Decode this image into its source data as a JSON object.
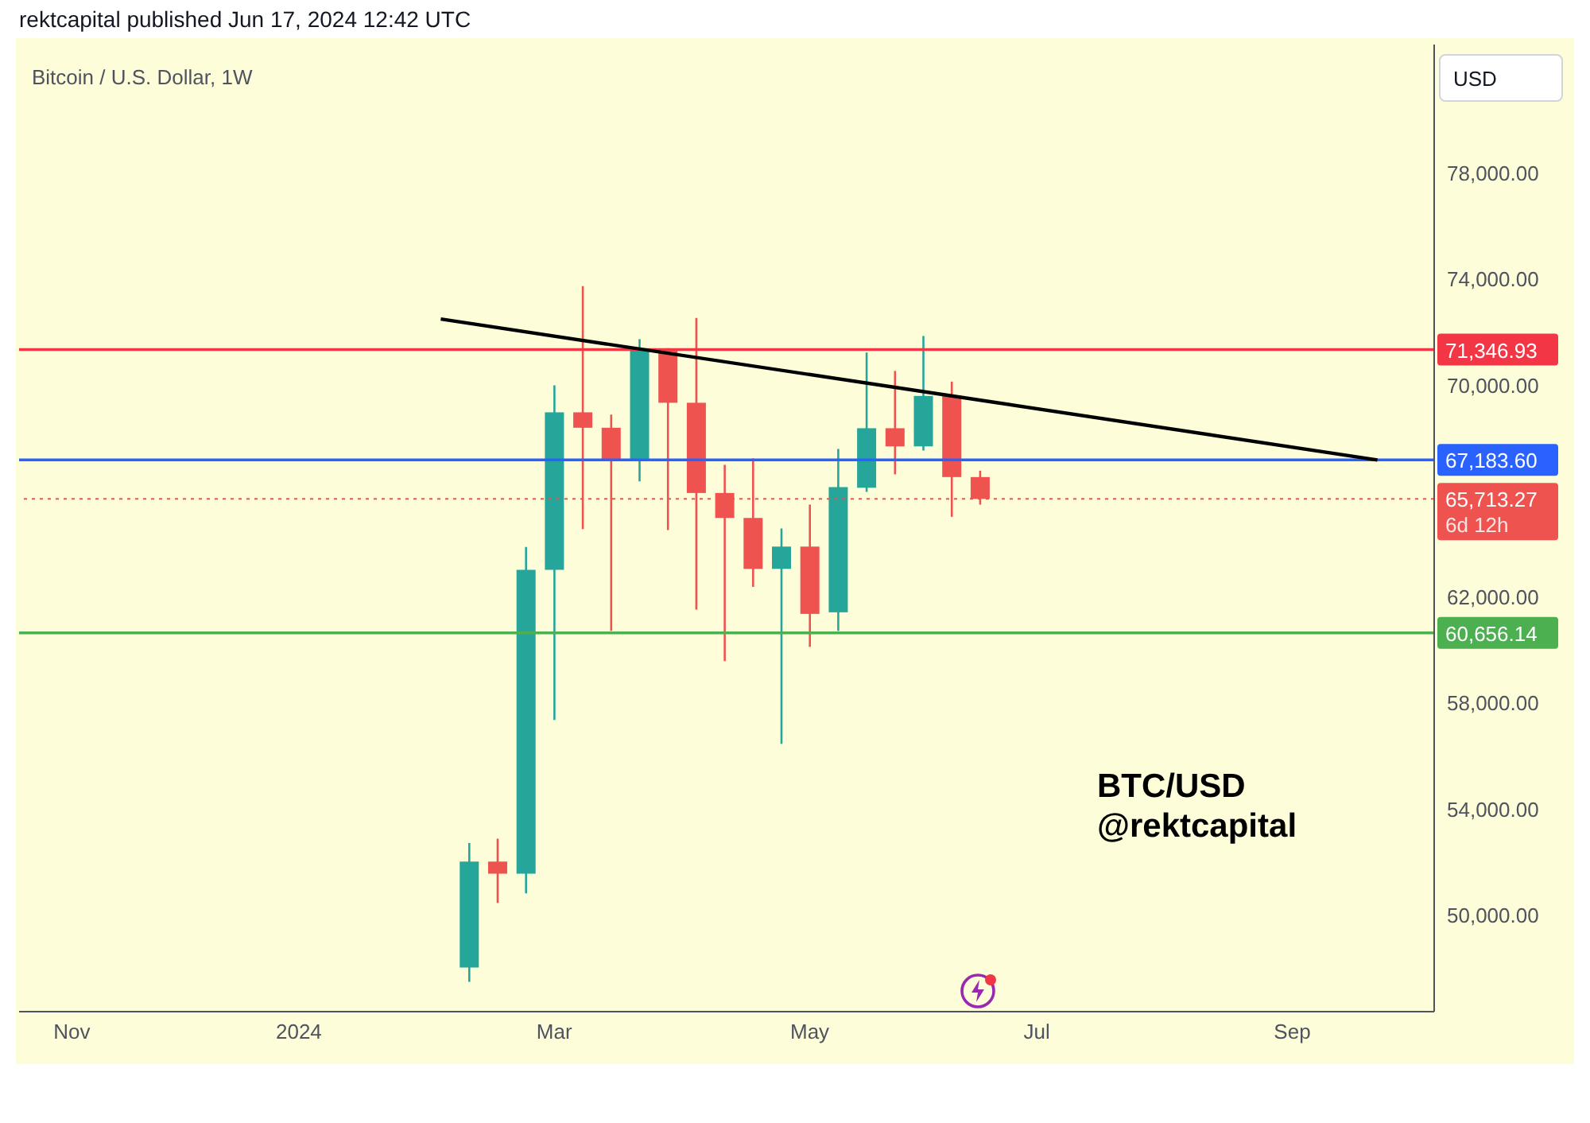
{
  "chart_data": {
    "type": "candlestick",
    "title": "rektcapital published Jun 17, 2024 12:42 UTC",
    "subtitle": "Bitcoin / U.S. Dollar, 1W",
    "x": [
      "2024-02-12",
      "2024-02-19",
      "2024-02-26",
      "2024-03-04",
      "2024-03-11",
      "2024-03-18",
      "2024-03-25",
      "2024-04-01",
      "2024-04-08",
      "2024-04-15",
      "2024-04-22",
      "2024-04-29",
      "2024-05-06",
      "2024-05-13",
      "2024-05-20",
      "2024-05-27",
      "2024-06-03",
      "2024-06-10",
      "2024-06-17"
    ],
    "ohlc": [
      [
        48025,
        52726,
        47485,
        52024
      ],
      [
        52024,
        52889,
        50463,
        51567
      ],
      [
        51567,
        63894,
        50823,
        63035
      ],
      [
        63035,
        70000,
        57368,
        68979
      ],
      [
        68979,
        73741,
        64572,
        68397
      ],
      [
        68397,
        68895,
        60730,
        67136
      ],
      [
        67136,
        71741,
        66374,
        71339
      ],
      [
        71339,
        71400,
        64536,
        69340
      ],
      [
        69340,
        72540,
        61534,
        65935
      ],
      [
        65935,
        66998,
        59589,
        64993
      ],
      [
        64993,
        67238,
        62393,
        63071
      ],
      [
        63071,
        64596,
        56467,
        63912
      ],
      [
        63912,
        65497,
        60129,
        61372
      ],
      [
        61432,
        67598,
        60730,
        66157
      ],
      [
        66133,
        71237,
        65977,
        68379
      ],
      [
        68379,
        70540,
        66638,
        67694
      ],
      [
        67694,
        71861,
        67538,
        69598
      ],
      [
        69598,
        70138,
        65035,
        66536
      ],
      [
        66536,
        66776,
        65497,
        65713.27
      ]
    ],
    "colors": [
      "#26a69a",
      "#ef5350",
      "#26a69a",
      "#26a69a",
      "#ef5350",
      "#ef5350",
      "#26a69a",
      "#ef5350",
      "#ef5350",
      "#ef5350",
      "#ef5350",
      "#26a69a",
      "#ef5350",
      "#26a69a",
      "#26a69a",
      "#ef5350",
      "#26a69a",
      "#ef5350",
      "#ef5350"
    ],
    "series": [
      {
        "type": "line",
        "x": [
          "2024-02-05",
          "2024-09-23"
        ],
        "values": [
          72500,
          67180
        ],
        "color": "#000000"
      }
    ],
    "xlim": [
      "2023-10-24",
      "2024-10-07"
    ],
    "xticks": [
      {
        "value": "2023-11-06",
        "label": "Nov"
      },
      {
        "value": "2024-01-01",
        "label": "2024"
      },
      {
        "value": "2024-03-04",
        "label": "Mar"
      },
      {
        "value": "2024-05-06",
        "label": "May"
      },
      {
        "value": "2024-07-01",
        "label": "Jul"
      },
      {
        "value": "2024-09-02",
        "label": "Sep"
      }
    ],
    "ylim": [
      46360,
      82860
    ],
    "yticks": [
      {
        "value": 50000,
        "label": "50,000.00"
      },
      {
        "value": 54000,
        "label": "54,000.00"
      },
      {
        "value": 58000,
        "label": "58,000.00"
      },
      {
        "value": 62000,
        "label": "62,000.00"
      },
      {
        "value": 70000,
        "label": "70,000.00"
      },
      {
        "value": 74000,
        "label": "74,000.00"
      },
      {
        "value": 78000,
        "label": "78,000.00"
      }
    ],
    "ref_lines": [
      {
        "axis": "y",
        "value": 71346.93,
        "label": "71,346.93",
        "color": "#f23645",
        "line_style": "solid"
      },
      {
        "axis": "y",
        "value": 67183.6,
        "label": "67,183.60",
        "color": "#2962ff",
        "line_style": "solid"
      },
      {
        "axis": "y",
        "value": 65713.27,
        "label": "65,713.27",
        "color": "#ef5350",
        "line_style": "dotted"
      },
      {
        "axis": "y",
        "value": 60656.14,
        "label": "60,656.14",
        "color": "#4caf50",
        "line_style": "solid"
      }
    ],
    "annotations": [
      "USD",
      "6d 12h",
      "BTC/USD",
      "@rektcapital"
    ]
  }
}
